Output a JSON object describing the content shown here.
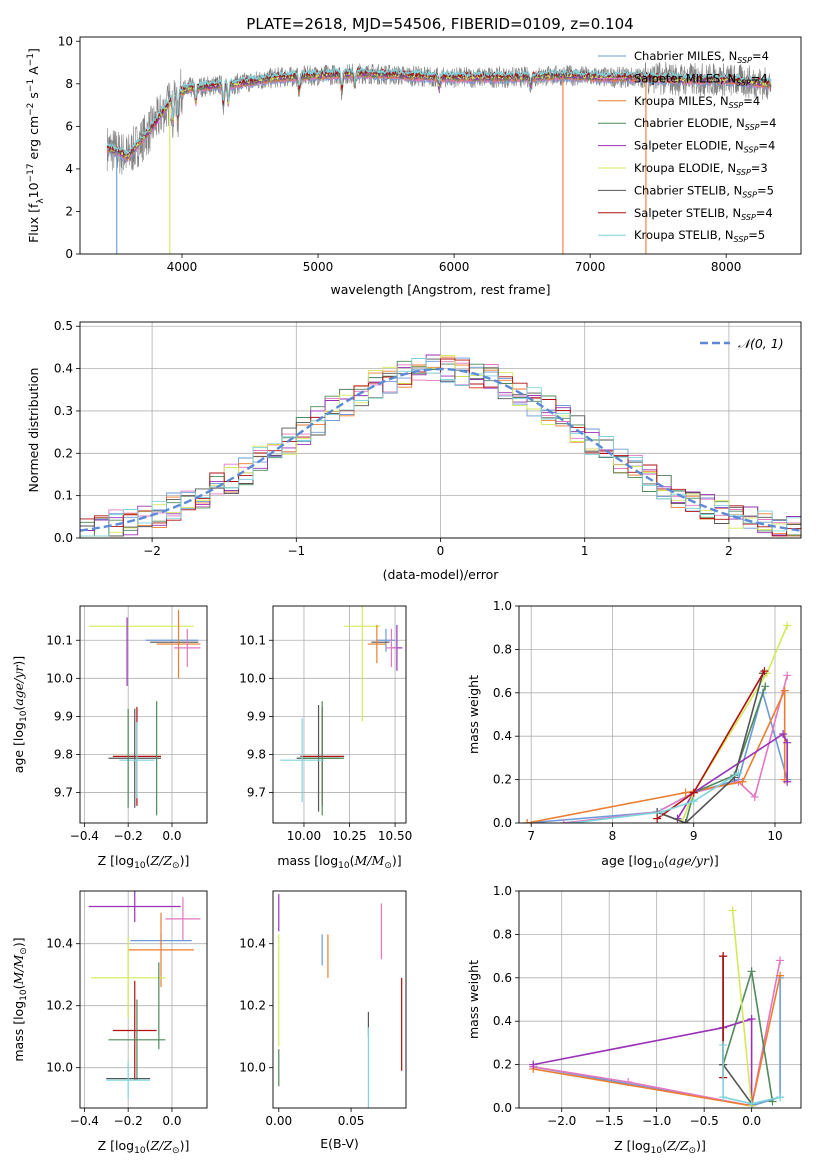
{
  "figure": {
    "title": "PLATE=2618, MJD=54506, FIBERID=0109, z=0.104"
  },
  "colors": {
    "Chabrier MILES": "#6b9bd8",
    "Salpeter MILES": "#e377c2",
    "Kroupa MILES": "#ed7d31",
    "Chabrier ELODIE": "#4f8a5a",
    "Salpeter ELODIE": "#9a32b8",
    "Kroupa ELODIE": "#d5e85a",
    "Chabrier STELIB": "#555555",
    "Salpeter STELIB": "#b01010",
    "Kroupa STELIB": "#7fd4dc",
    "data": "#808080",
    "gaussian": "#5b8bd6"
  },
  "chart_data": [
    {
      "id": "spectrum",
      "type": "line",
      "xlabel": "wavelength [Angstrom, rest frame]",
      "ylabel_parts": [
        "Flux [f",
        "λ",
        "10",
        "−17",
        " erg cm",
        "−2",
        " s",
        "−1",
        " A",
        "−1",
        "]"
      ],
      "xlim": [
        3250,
        8550
      ],
      "ylim": [
        0,
        10.2
      ],
      "xticks": [
        4000,
        5000,
        6000,
        7000,
        8000
      ],
      "yticks": [
        0,
        2,
        4,
        6,
        8,
        10
      ],
      "legend": [
        {
          "model": "Chabrier MILES",
          "nssp": "4"
        },
        {
          "model": "Salpeter MILES",
          "nssp": "4"
        },
        {
          "model": "Kroupa MILES",
          "nssp": "4"
        },
        {
          "model": "Chabrier ELODIE",
          "nssp": "4"
        },
        {
          "model": "Salpeter ELODIE",
          "nssp": "4"
        },
        {
          "model": "Kroupa ELODIE",
          "nssp": "3"
        },
        {
          "model": "Chabrier STELIB",
          "nssp": "5"
        },
        {
          "model": "Salpeter STELIB",
          "nssp": "4"
        },
        {
          "model": "Kroupa STELIB",
          "nssp": "5"
        }
      ],
      "continuum": [
        [
          3450,
          5.0
        ],
        [
          3600,
          4.6
        ],
        [
          3750,
          5.7
        ],
        [
          3850,
          6.6
        ],
        [
          3950,
          7.5
        ],
        [
          4050,
          7.8
        ],
        [
          4200,
          7.9
        ],
        [
          4400,
          8.0
        ],
        [
          4700,
          8.3
        ],
        [
          5000,
          8.4
        ],
        [
          5300,
          8.5
        ],
        [
          5600,
          8.4
        ],
        [
          5900,
          8.3
        ],
        [
          6200,
          8.3
        ],
        [
          6500,
          8.3
        ],
        [
          6800,
          8.4
        ],
        [
          7100,
          8.3
        ],
        [
          7400,
          8.3
        ],
        [
          7700,
          8.2
        ],
        [
          8000,
          8.2
        ],
        [
          8300,
          8.0
        ]
      ],
      "absorption_lines": [
        [
          3934,
          6.2
        ],
        [
          3969,
          6.2
        ],
        [
          4101,
          7.1
        ],
        [
          4304,
          6.9
        ],
        [
          4340,
          7.0
        ],
        [
          4861,
          7.6
        ],
        [
          5175,
          7.6
        ],
        [
          5270,
          7.9
        ],
        [
          5890,
          7.8
        ],
        [
          6563,
          7.9
        ]
      ],
      "glitches": [
        {
          "model": "Chabrier MILES",
          "x": 3520,
          "y": 0
        },
        {
          "model": "Kroupa ELODIE",
          "x": 3910,
          "y": 0
        },
        {
          "model": "Kroupa MILES",
          "x": 6800,
          "y": 0
        },
        {
          "model": "Kroupa MILES",
          "x": 7410,
          "y": 0
        }
      ]
    },
    {
      "id": "residuals",
      "type": "histogram",
      "xlabel": "(data-model)/error",
      "ylabel": "Normed distribution",
      "xlim": [
        -2.5,
        2.5
      ],
      "ylim": [
        0,
        0.51
      ],
      "xticks": [
        -2,
        -1,
        0,
        1,
        2
      ],
      "yticks": [
        0.0,
        0.1,
        0.2,
        0.3,
        0.4,
        0.5
      ],
      "grid": true,
      "bin_width": 0.1,
      "reference_curve": "N(0,1)",
      "legend_placement": "upper right",
      "legend": [
        "𝒩(0, 1)"
      ]
    },
    {
      "id": "age-vs-Z",
      "type": "errorbar",
      "xlabel": "Z [log10(Z/Z⊙)]",
      "ylabel": "age  [log10(age/yr)]",
      "xlim": [
        -0.42,
        0.16
      ],
      "ylim": [
        9.62,
        10.19
      ],
      "xticks": [
        -0.4,
        -0.2,
        0.0
      ],
      "yticks": [
        9.7,
        9.8,
        9.9,
        10.0,
        10.1
      ],
      "grid": true,
      "points": [
        {
          "model": "Kroupa ELODIE",
          "x": -0.14,
          "xerr": 0.24,
          "y": 10.137,
          "yerr": 0.0
        },
        {
          "model": "Salpeter ELODIE",
          "x": -0.205,
          "xerr": 0.0,
          "y": 10.07,
          "yerr": 0.09
        },
        {
          "model": "Chabrier MILES",
          "x": 0.0,
          "xerr": 0.12,
          "y": 10.1,
          "yerr": 0.0
        },
        {
          "model": "Chabrier STELIB",
          "x": 0.01,
          "xerr": 0.11,
          "y": 10.095,
          "yerr": 0.0
        },
        {
          "model": "Kroupa MILES",
          "x": 0.03,
          "xerr": 0.1,
          "y": 10.09,
          "yerr": 0.09
        },
        {
          "model": "Salpeter MILES",
          "x": 0.07,
          "xerr": 0.06,
          "y": 10.08,
          "yerr": 0.05
        },
        {
          "model": "Salpeter STELIB",
          "x": -0.16,
          "xerr": 0.11,
          "y": 9.795,
          "yerr": 0.13
        },
        {
          "model": "Chabrier STELIB",
          "x": -0.17,
          "xerr": 0.12,
          "y": 9.79,
          "yerr": 0.13
        },
        {
          "model": "Chabrier ELODIE",
          "x": -0.07,
          "xerr": 0.0,
          "y": 9.79,
          "yerr": 0.15
        },
        {
          "model": "Kroupa STELIB",
          "x": -0.16,
          "xerr": 0.08,
          "y": 9.785,
          "yerr": 0.1
        },
        {
          "model": "Chabrier ELODIE",
          "x": -0.2,
          "xerr": 0.0,
          "y": 9.79,
          "yerr": 0.13
        }
      ]
    },
    {
      "id": "age-vs-mass",
      "type": "errorbar",
      "xlabel": "mass [log10(M/M⊙)]",
      "xlim": [
        9.83,
        10.56
      ],
      "ylim": [
        9.62,
        10.19
      ],
      "xticks": [
        10.0,
        10.25,
        10.5
      ],
      "xtick_labels": [
        "10.00",
        "10.25",
        "10.50"
      ],
      "yticks": [
        9.7,
        9.8,
        9.9,
        10.0,
        10.1
      ],
      "grid": true,
      "points": [
        {
          "model": "Kroupa ELODIE",
          "x": 10.32,
          "xerr": 0.1,
          "y": 10.137,
          "yerr": 0.25
        },
        {
          "model": "Salpeter ELODIE",
          "x": 10.51,
          "xerr": 0.03,
          "y": 10.08,
          "yerr": 0.06
        },
        {
          "model": "Chabrier MILES",
          "x": 10.45,
          "xerr": 0.05,
          "y": 10.1,
          "yerr": 0.03
        },
        {
          "model": "Chabrier STELIB",
          "x": 10.42,
          "xerr": 0.05,
          "y": 10.095,
          "yerr": 0.0
        },
        {
          "model": "Kroupa MILES",
          "x": 10.4,
          "xerr": 0.05,
          "y": 10.09,
          "yerr": 0.05
        },
        {
          "model": "Salpeter MILES",
          "x": 10.48,
          "xerr": 0.03,
          "y": 10.08,
          "yerr": 0.05
        },
        {
          "model": "Salpeter STELIB",
          "x": 10.1,
          "xerr": 0.12,
          "y": 9.795,
          "yerr": 0.13
        },
        {
          "model": "Chabrier STELIB",
          "x": 10.08,
          "xerr": 0.12,
          "y": 9.79,
          "yerr": 0.14
        },
        {
          "model": "Chabrier ELODIE",
          "x": 10.1,
          "xerr": 0.12,
          "y": 9.79,
          "yerr": 0.15
        },
        {
          "model": "Kroupa STELIB",
          "x": 9.99,
          "xerr": 0.12,
          "y": 9.785,
          "yerr": 0.11
        }
      ]
    },
    {
      "id": "mass-weight-vs-age",
      "type": "line",
      "xlabel": "age  [log10(age/yr)]",
      "ylabel": "mass weight",
      "xlim": [
        6.85,
        10.32
      ],
      "ylim": [
        0,
        1.0
      ],
      "xticks": [
        7,
        8,
        9,
        10
      ],
      "yticks": [
        0.0,
        0.2,
        0.4,
        0.6,
        0.8,
        1.0
      ],
      "grid": true,
      "series": [
        {
          "model": "Chabrier MILES",
          "x": [
            6.95,
            8.55,
            9.0,
            9.55,
            9.85,
            10.15
          ],
          "y": [
            0.0,
            0.05,
            0.14,
            0.2,
            0.6,
            0.2
          ]
        },
        {
          "model": "Salpeter MILES",
          "x": [
            7.4,
            8.55,
            9.0,
            9.55,
            9.75,
            10.15
          ],
          "y": [
            0.0,
            0.05,
            0.14,
            0.19,
            0.12,
            0.68
          ]
        },
        {
          "model": "Kroupa MILES",
          "x": [
            6.95,
            8.9,
            9.6,
            10.12,
            10.12
          ],
          "y": [
            0.0,
            0.14,
            0.19,
            0.61,
            0.2
          ]
        },
        {
          "model": "Chabrier ELODIE",
          "x": [
            8.55,
            8.9,
            9.0,
            9.5,
            9.88
          ],
          "y": [
            0.05,
            0.0,
            0.14,
            0.22,
            0.63
          ]
        },
        {
          "model": "Salpeter ELODIE",
          "x": [
            8.8,
            9.0,
            10.1,
            10.15,
            10.15
          ],
          "y": [
            0.02,
            0.14,
            0.41,
            0.37,
            0.19
          ]
        },
        {
          "model": "Kroupa ELODIE",
          "x": [
            8.85,
            9.0,
            9.9,
            10.15
          ],
          "y": [
            0.0,
            0.14,
            0.69,
            0.91
          ]
        },
        {
          "model": "Chabrier STELIB",
          "x": [
            8.55,
            8.9,
            9.5,
            9.85
          ],
          "y": [
            0.05,
            0.0,
            0.21,
            0.69
          ]
        },
        {
          "model": "Salpeter STELIB",
          "x": [
            8.55,
            9.0,
            9.87
          ],
          "y": [
            0.02,
            0.14,
            0.7
          ]
        },
        {
          "model": "Kroupa STELIB",
          "x": [
            7.5,
            8.6,
            9.0,
            9.55
          ],
          "y": [
            0.0,
            0.05,
            0.1,
            0.23
          ]
        }
      ]
    },
    {
      "id": "mass-vs-Z",
      "type": "errorbar",
      "xlabel": "Z [log10(Z/Z⊙)]",
      "ylabel": "mass [log10(M/M⊙)]",
      "xlim": [
        -0.42,
        0.16
      ],
      "ylim": [
        9.87,
        10.57
      ],
      "xticks": [
        -0.4,
        -0.2,
        0.0
      ],
      "yticks": [
        10.0,
        10.2,
        10.4
      ],
      "grid": true,
      "points": [
        {
          "model": "Salpeter ELODIE",
          "x": -0.17,
          "xerr": 0.21,
          "y": 10.52,
          "yerr": 0.05
        },
        {
          "model": "Salpeter MILES",
          "x": 0.05,
          "xerr": 0.08,
          "y": 10.48,
          "yerr": 0.07
        },
        {
          "model": "Chabrier MILES",
          "x": -0.05,
          "xerr": 0.14,
          "y": 10.41,
          "yerr": 0.02
        },
        {
          "model": "Kroupa MILES",
          "x": -0.05,
          "xerr": 0.15,
          "y": 10.38,
          "yerr": 0.12
        },
        {
          "model": "Kroupa ELODIE",
          "x": -0.2,
          "xerr": 0.17,
          "y": 10.29,
          "yerr": 0.13
        },
        {
          "model": "Chabrier ELODIE",
          "x": -0.06,
          "xerr": 0.0,
          "y": 10.2,
          "yerr": 0.14
        },
        {
          "model": "Salpeter STELIB",
          "x": -0.17,
          "xerr": 0.1,
          "y": 10.12,
          "yerr": 0.16
        },
        {
          "model": "Chabrier ELODIE",
          "x": -0.16,
          "xerr": 0.13,
          "y": 10.09,
          "yerr": 0.13
        },
        {
          "model": "Chabrier STELIB",
          "x": -0.2,
          "xerr": 0.1,
          "y": 9.965,
          "yerr": 0.0
        },
        {
          "model": "Kroupa STELIB",
          "x": -0.2,
          "xerr": 0.1,
          "y": 9.96,
          "yerr": 0.06
        }
      ]
    },
    {
      "id": "mass-vs-EBV",
      "type": "errorbar",
      "xlabel": "E(B-V)",
      "xlim": [
        -0.004,
        0.088
      ],
      "ylim": [
        9.87,
        10.57
      ],
      "xticks": [
        0.0,
        0.05
      ],
      "xtick_labels": [
        "0.00",
        "0.05"
      ],
      "yticks": [
        10.0,
        10.2,
        10.4
      ],
      "grid": false,
      "points": [
        {
          "model": "Salpeter ELODIE",
          "x": 0.0,
          "y": 10.5,
          "yerr": 0.06
        },
        {
          "model": "Kroupa ELODIE",
          "x": 0.0,
          "y": 10.25,
          "yerr": 0.18
        },
        {
          "model": "Chabrier ELODIE",
          "x": 0.0,
          "y": 10.0,
          "yerr": 0.06
        },
        {
          "model": "Chabrier MILES",
          "x": 0.03,
          "y": 10.38,
          "yerr": 0.05
        },
        {
          "model": "Kroupa MILES",
          "x": 0.034,
          "y": 10.36,
          "yerr": 0.07
        },
        {
          "model": "Salpeter MILES",
          "x": 0.071,
          "y": 10.44,
          "yerr": 0.09
        },
        {
          "model": "Chabrier STELIB",
          "x": 0.062,
          "y": 10.14,
          "yerr": 0.04
        },
        {
          "model": "Kroupa STELIB",
          "x": 0.062,
          "y": 10.0,
          "yerr": 0.13
        },
        {
          "model": "Salpeter STELIB",
          "x": 0.085,
          "y": 10.14,
          "yerr": 0.15
        }
      ]
    },
    {
      "id": "mass-weight-vs-Z",
      "type": "line",
      "xlabel": "Z [log10(Z/Z⊙)]",
      "ylabel": "mass weight",
      "xlim": [
        -2.45,
        0.52
      ],
      "ylim": [
        0,
        1.0
      ],
      "xticks": [
        -2.0,
        -1.5,
        -1.0,
        -0.5,
        0.0
      ],
      "yticks": [
        0.0,
        0.2,
        0.4,
        0.6,
        0.8,
        1.0
      ],
      "grid": true,
      "series": [
        {
          "model": "Chabrier MILES",
          "x": [
            -2.3,
            0.0,
            0.3,
            0.3
          ],
          "y": [
            0.19,
            0.01,
            0.05,
            0.6
          ]
        },
        {
          "model": "Salpeter MILES",
          "x": [
            -2.3,
            -1.3,
            0.0,
            0.3
          ],
          "y": [
            0.19,
            0.12,
            0.01,
            0.68
          ]
        },
        {
          "model": "Kroupa MILES",
          "x": [
            -2.3,
            0.0,
            0.3
          ],
          "y": [
            0.18,
            0.01,
            0.61
          ]
        },
        {
          "model": "Chabrier ELODIE",
          "x": [
            -0.3,
            0.0,
            0.22
          ],
          "y": [
            0.2,
            0.63,
            0.03
          ]
        },
        {
          "model": "Salpeter ELODIE",
          "x": [
            -2.3,
            -0.3,
            0.0,
            0.0
          ],
          "y": [
            0.2,
            0.37,
            0.41,
            0.02
          ]
        },
        {
          "model": "Kroupa ELODIE",
          "x": [
            -0.2,
            0.0
          ],
          "y": [
            0.91,
            0.01
          ]
        },
        {
          "model": "Chabrier STELIB",
          "x": [
            -0.3,
            -0.3,
            0.0
          ],
          "y": [
            0.7,
            0.2,
            0.02
          ]
        },
        {
          "model": "Salpeter STELIB",
          "x": [
            -0.3,
            -0.3
          ],
          "y": [
            0.7,
            0.14
          ]
        },
        {
          "model": "Kroupa STELIB",
          "x": [
            -0.3,
            -0.3,
            0.0,
            0.3
          ],
          "y": [
            0.29,
            0.05,
            0.02,
            0.05
          ]
        }
      ]
    }
  ]
}
